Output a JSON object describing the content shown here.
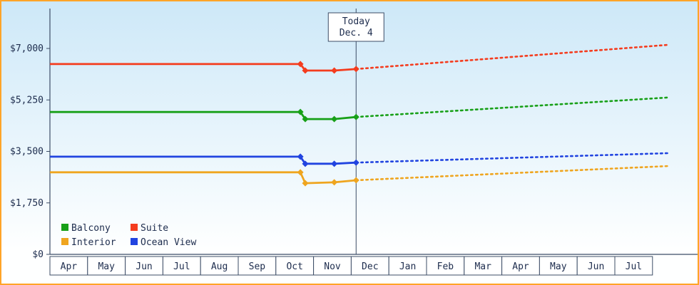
{
  "colors": {
    "frame_border": "#ffa428",
    "bg_gradient_top": "#cde8f8",
    "bg_gradient_bottom": "#feffff",
    "axis_line": "#3c4c66",
    "text": "#1d2c4d",
    "box_fill": "#ffffff"
  },
  "today_marker": {
    "line1": "Today",
    "line2": "Dec. 4",
    "x_month": 8.13
  },
  "chart_data": {
    "type": "line",
    "title": "",
    "x_axis": {
      "months": [
        "Apr",
        "May",
        "Jun",
        "Jul",
        "Aug",
        "Sep",
        "Oct",
        "Nov",
        "Dec",
        "Jan",
        "Feb",
        "Mar",
        "Apr",
        "May",
        "Jun",
        "Jul"
      ]
    },
    "y_axis": {
      "min": 0,
      "max": 7000,
      "ticks": [
        {
          "value": 0,
          "label": "$0"
        },
        {
          "value": 1750,
          "label": "$1,750"
        },
        {
          "value": 3500,
          "label": "$3,500"
        },
        {
          "value": 5250,
          "label": "$5,250"
        },
        {
          "value": 7000,
          "label": "$7,000"
        }
      ]
    },
    "series": [
      {
        "name": "Balcony",
        "color": "#18a018",
        "history": [
          [
            0,
            4840
          ],
          [
            6.65,
            4840
          ],
          [
            6.78,
            4600
          ],
          [
            7.55,
            4600
          ],
          [
            8.13,
            4670
          ]
        ],
        "markers": [
          [
            6.65,
            4840
          ],
          [
            6.78,
            4600
          ],
          [
            7.55,
            4600
          ],
          [
            8.13,
            4670
          ]
        ],
        "forecast": [
          [
            8.13,
            4670
          ],
          [
            16.4,
            5330
          ]
        ]
      },
      {
        "name": "Suite",
        "color": "#f43c1e",
        "history": [
          [
            0,
            6470
          ],
          [
            6.65,
            6470
          ],
          [
            6.78,
            6250
          ],
          [
            7.55,
            6250
          ],
          [
            8.13,
            6300
          ]
        ],
        "markers": [
          [
            6.65,
            6470
          ],
          [
            6.78,
            6250
          ],
          [
            7.55,
            6250
          ],
          [
            8.13,
            6300
          ]
        ],
        "forecast": [
          [
            8.13,
            6300
          ],
          [
            16.4,
            7120
          ]
        ]
      },
      {
        "name": "Interior",
        "color": "#efa51f",
        "history": [
          [
            0,
            2790
          ],
          [
            6.65,
            2790
          ],
          [
            6.78,
            2420
          ],
          [
            7.55,
            2450
          ],
          [
            8.13,
            2520
          ]
        ],
        "markers": [
          [
            6.65,
            2790
          ],
          [
            6.78,
            2420
          ],
          [
            7.55,
            2450
          ],
          [
            8.13,
            2520
          ]
        ],
        "forecast": [
          [
            8.13,
            2520
          ],
          [
            16.4,
            3000
          ]
        ]
      },
      {
        "name": "Ocean View",
        "color": "#2144e0",
        "history": [
          [
            0,
            3320
          ],
          [
            6.65,
            3320
          ],
          [
            6.78,
            3080
          ],
          [
            7.55,
            3080
          ],
          [
            8.13,
            3120
          ]
        ],
        "markers": [
          [
            6.65,
            3320
          ],
          [
            6.78,
            3080
          ],
          [
            7.55,
            3080
          ],
          [
            8.13,
            3120
          ]
        ],
        "forecast": [
          [
            8.13,
            3120
          ],
          [
            16.4,
            3440
          ]
        ]
      }
    ],
    "legend": {
      "position": "bottom-left",
      "rows": [
        [
          "Balcony",
          "Suite"
        ],
        [
          "Interior",
          "Ocean View"
        ]
      ]
    }
  }
}
